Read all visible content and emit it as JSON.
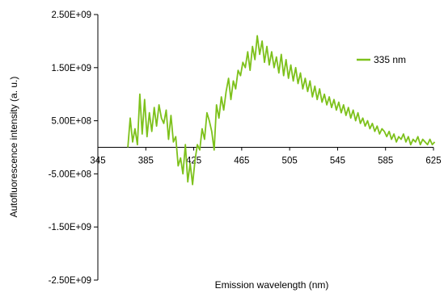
{
  "chart_data": {
    "type": "line",
    "title": "",
    "xlabel": "Emission wavelength (nm)",
    "ylabel": "Autofluorescence intensity (a. u.)",
    "xlim": [
      345,
      625
    ],
    "ylim": [
      -2500000000,
      2500000000
    ],
    "x_ticks": [
      345,
      385,
      425,
      465,
      505,
      545,
      585,
      625
    ],
    "x_tick_labels": [
      "345",
      "385",
      "425",
      "465",
      "505",
      "545",
      "585",
      "625"
    ],
    "y_ticks": [
      2500000000,
      1500000000,
      500000000,
      -500000000,
      -1500000000,
      -2500000000
    ],
    "y_tick_labels": [
      "2.50E+09",
      "1.50E+09",
      "5.00E+08",
      "-5.00E+08",
      "-1.50E+09",
      "-2.50E+09"
    ],
    "grid": false,
    "legend_position": "right",
    "series": [
      {
        "name": "335 nm",
        "color": "#7dc11b",
        "x": [
          370,
          372,
          374,
          376,
          378,
          380,
          382,
          384,
          386,
          388,
          390,
          392,
          394,
          396,
          398,
          400,
          402,
          404,
          406,
          408,
          410,
          412,
          414,
          416,
          418,
          420,
          422,
          424,
          426,
          428,
          430,
          432,
          434,
          436,
          438,
          440,
          442,
          444,
          446,
          448,
          450,
          452,
          454,
          456,
          458,
          460,
          462,
          464,
          466,
          468,
          470,
          472,
          474,
          476,
          478,
          480,
          482,
          484,
          486,
          488,
          490,
          492,
          494,
          496,
          498,
          500,
          502,
          504,
          506,
          508,
          510,
          512,
          514,
          516,
          518,
          520,
          522,
          524,
          526,
          528,
          530,
          532,
          534,
          536,
          538,
          540,
          542,
          544,
          546,
          548,
          550,
          552,
          554,
          556,
          558,
          560,
          562,
          564,
          566,
          568,
          570,
          572,
          574,
          576,
          578,
          580,
          582,
          584,
          586,
          588,
          590,
          592,
          594,
          596,
          598,
          600,
          602,
          604,
          606,
          608,
          610,
          612,
          614,
          616,
          618,
          620,
          622,
          624,
          626
        ],
        "y": [
          0,
          550000000,
          100000000,
          350000000,
          50000000,
          1000000000,
          250000000,
          900000000,
          200000000,
          650000000,
          300000000,
          750000000,
          400000000,
          800000000,
          550000000,
          450000000,
          700000000,
          150000000,
          600000000,
          100000000,
          200000000,
          -350000000,
          -200000000,
          -500000000,
          50000000,
          -650000000,
          -300000000,
          -700000000,
          -250000000,
          50000000,
          -50000000,
          350000000,
          150000000,
          650000000,
          500000000,
          300000000,
          -50000000,
          800000000,
          550000000,
          950000000,
          700000000,
          1050000000,
          1300000000,
          900000000,
          1250000000,
          1100000000,
          1450000000,
          1350000000,
          1600000000,
          1500000000,
          1800000000,
          1450000000,
          1900000000,
          1650000000,
          2100000000,
          1750000000,
          2000000000,
          1600000000,
          1900000000,
          1550000000,
          1800000000,
          1500000000,
          1700000000,
          1400000000,
          1750000000,
          1350000000,
          1650000000,
          1300000000,
          1550000000,
          1250000000,
          1500000000,
          1200000000,
          1400000000,
          1100000000,
          1300000000,
          1050000000,
          1250000000,
          950000000,
          1150000000,
          900000000,
          1100000000,
          850000000,
          1000000000,
          800000000,
          950000000,
          750000000,
          900000000,
          700000000,
          850000000,
          650000000,
          800000000,
          600000000,
          750000000,
          550000000,
          700000000,
          500000000,
          650000000,
          450000000,
          550000000,
          400000000,
          500000000,
          350000000,
          450000000,
          300000000,
          400000000,
          250000000,
          350000000,
          300000000,
          200000000,
          300000000,
          150000000,
          250000000,
          100000000,
          200000000,
          150000000,
          250000000,
          100000000,
          200000000,
          50000000,
          150000000,
          100000000,
          200000000,
          50000000,
          150000000,
          100000000,
          50000000,
          150000000,
          50000000,
          100000000
        ]
      }
    ]
  }
}
